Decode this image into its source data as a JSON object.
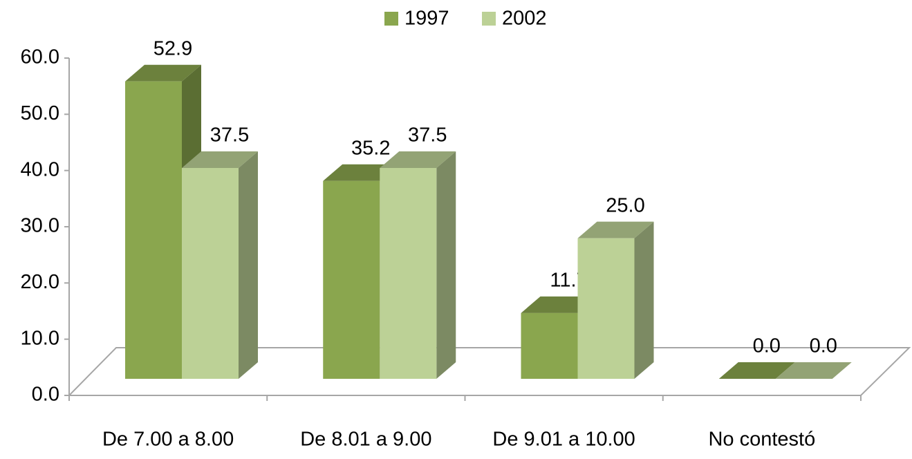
{
  "chart_data": {
    "type": "bar3d",
    "categories": [
      "De 7.00 a 8.00",
      "De 8.01 a 9.00",
      "De 9.01 a 10.00",
      "No contestó"
    ],
    "series": [
      {
        "name": "1997",
        "color": "#8aa64e",
        "values": [
          52.9,
          35.2,
          11.7,
          0
        ],
        "value_labels": [
          "52.9",
          "35.2",
          "11.7",
          "0.0"
        ]
      },
      {
        "name": "2002",
        "color": "#bcd196",
        "values": [
          37.5,
          37.5,
          25,
          0
        ],
        "value_labels": [
          "37.5",
          "37.5",
          "25.0",
          "0.0"
        ]
      }
    ],
    "ylim": [
      0,
      60
    ],
    "yticks": [
      {
        "value": 0,
        "label": "0.0"
      },
      {
        "value": 10,
        "label": "10.0"
      },
      {
        "value": 20,
        "label": "20.0"
      },
      {
        "value": 30,
        "label": "30.0"
      },
      {
        "value": 40,
        "label": "40.0"
      },
      {
        "value": 50,
        "label": "50.0"
      },
      {
        "value": 60,
        "label": "60.0"
      }
    ],
    "legend": "top"
  }
}
